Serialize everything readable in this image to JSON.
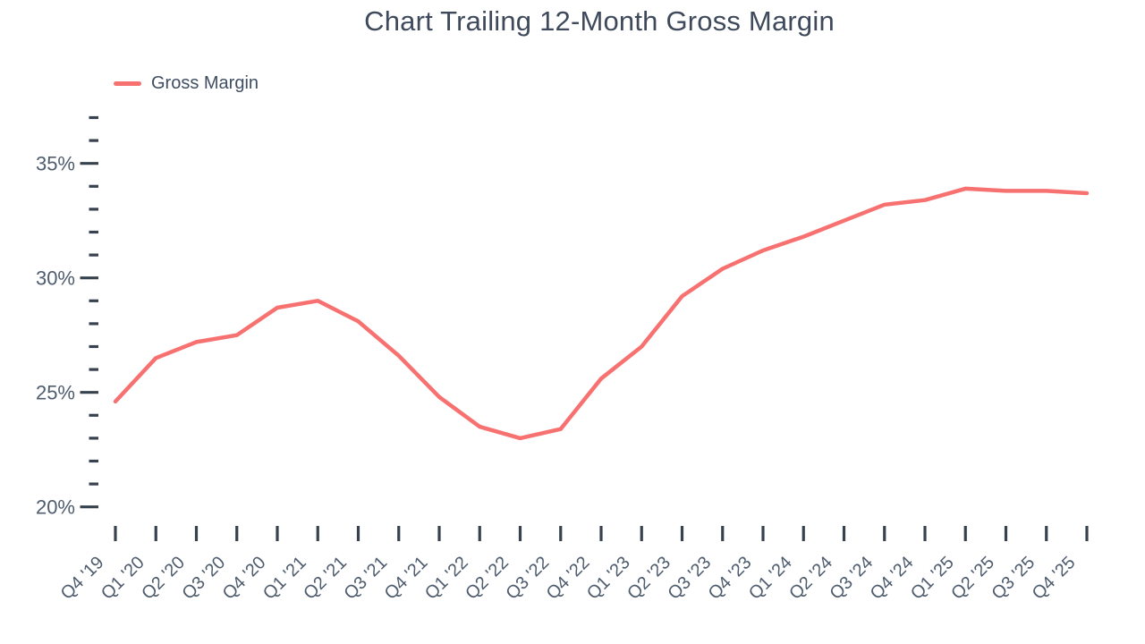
{
  "title": "Chart Trailing 12-Month Gross Margin",
  "legend": {
    "label": "Gross Margin"
  },
  "colors": {
    "line": "#f87171",
    "title": "#3e4a5b",
    "axis_label": "#4e5c6e",
    "tick": "#37424e"
  },
  "chart_data": {
    "type": "line",
    "title": "Chart Trailing 12-Month Gross Margin",
    "categories": [
      "Q4 '19",
      "Q1 '20",
      "Q2 '20",
      "Q3 '20",
      "Q4 '20",
      "Q1 '21",
      "Q2 '21",
      "Q3 '21",
      "Q4 '21",
      "Q1 '22",
      "Q2 '22",
      "Q3 '22",
      "Q4 '22",
      "Q1 '23",
      "Q2 '23",
      "Q3 '23",
      "Q4 '23",
      "Q1 '24",
      "Q2 '24",
      "Q3 '24",
      "Q4 '24",
      "Q1 '25",
      "Q2 '25",
      "Q3 '25",
      "Q4 '25"
    ],
    "series": [
      {
        "name": "Gross Margin",
        "color": "#f87171",
        "values": [
          24.6,
          26.5,
          27.2,
          27.5,
          28.7,
          29.0,
          28.1,
          26.6,
          24.8,
          23.5,
          23.0,
          23.4,
          25.6,
          27.0,
          29.2,
          30.4,
          31.2,
          31.8,
          32.5,
          33.2,
          33.4,
          33.9,
          33.8,
          33.8,
          33.7
        ]
      }
    ],
    "xlabel": "",
    "ylabel": "",
    "y_axis": {
      "min": 20,
      "max": 37,
      "unit": "%",
      "major_ticks": [
        20,
        25,
        30,
        35
      ],
      "major_tick_labels": [
        "20%",
        "25%",
        "30%",
        "35%"
      ],
      "minor_tick_step": 1
    },
    "ylim": [
      20,
      37
    ],
    "legend_position": "top-left",
    "grid": false
  }
}
